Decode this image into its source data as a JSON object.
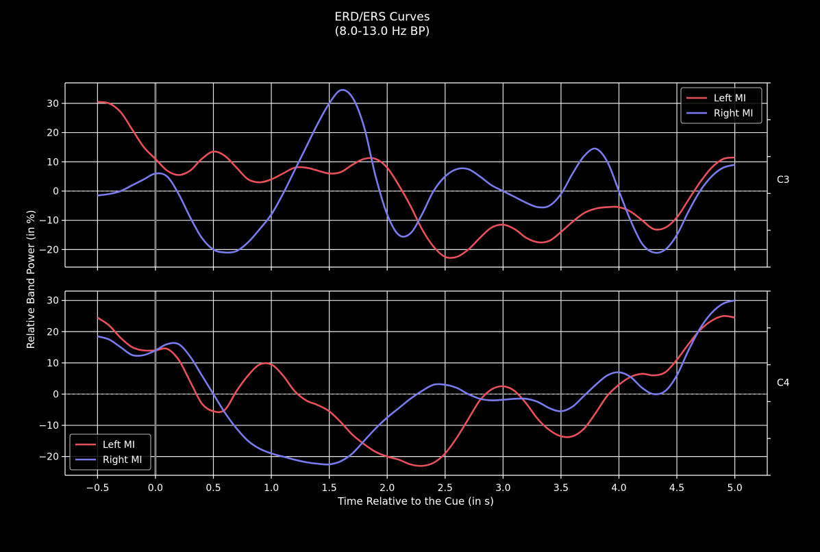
{
  "chart_data": {
    "type": "line",
    "title": "ERD/ERS Curves",
    "subtitle": "(8.0-13.0 Hz BP)",
    "xlabel": "Time Relative to the Cue (in s)",
    "ylabel": "Relative Band Power (in %)",
    "xlim": [
      -0.78,
      5.28
    ],
    "x_ticks": [
      -0.5,
      0.0,
      0.5,
      1.0,
      1.5,
      2.0,
      2.5,
      3.0,
      3.5,
      4.0,
      4.5,
      5.0
    ],
    "x_tick_labels": [
      "−0.5",
      "0.0",
      "0.5",
      "1.0",
      "1.5",
      "2.0",
      "2.5",
      "3.0",
      "3.5",
      "4.0",
      "4.5",
      "5.0"
    ],
    "grid": true,
    "colors": {
      "background": "#000000",
      "left": "#e8505b",
      "right": "#7b7bee",
      "grid": "#e6e6e6",
      "cue": "#808080"
    },
    "legend_labels": [
      "Left MI",
      "Right MI"
    ],
    "panels": [
      {
        "channel": "C3",
        "ylim": [
          -26,
          37
        ],
        "y_ticks": [
          -20,
          -10,
          0,
          10,
          20,
          30
        ],
        "y_tick_labels": [
          "−20",
          "−10",
          "0",
          "10",
          "20",
          "30"
        ],
        "legend_position": "upper-right",
        "series": [
          {
            "name": "Left MI",
            "points": [
              [
                -0.5,
                30.5
              ],
              [
                -0.4,
                30
              ],
              [
                -0.3,
                27
              ],
              [
                -0.2,
                21
              ],
              [
                -0.1,
                15
              ],
              [
                0,
                11
              ],
              [
                0.1,
                7
              ],
              [
                0.2,
                5.5
              ],
              [
                0.3,
                7
              ],
              [
                0.4,
                11
              ],
              [
                0.5,
                13.5
              ],
              [
                0.6,
                12
              ],
              [
                0.7,
                8
              ],
              [
                0.8,
                4
              ],
              [
                0.9,
                3
              ],
              [
                1.0,
                4
              ],
              [
                1.1,
                6
              ],
              [
                1.2,
                8
              ],
              [
                1.3,
                8
              ],
              [
                1.4,
                7
              ],
              [
                1.5,
                6
              ],
              [
                1.6,
                6.5
              ],
              [
                1.7,
                9
              ],
              [
                1.8,
                11
              ],
              [
                1.9,
                11
              ],
              [
                2.0,
                8
              ],
              [
                2.1,
                2
              ],
              [
                2.2,
                -5
              ],
              [
                2.3,
                -13
              ],
              [
                2.4,
                -19
              ],
              [
                2.5,
                -22.5
              ],
              [
                2.6,
                -22.5
              ],
              [
                2.7,
                -20
              ],
              [
                2.8,
                -16
              ],
              [
                2.9,
                -12.5
              ],
              [
                3.0,
                -11.5
              ],
              [
                3.1,
                -13
              ],
              [
                3.2,
                -16
              ],
              [
                3.3,
                -17.5
              ],
              [
                3.4,
                -17
              ],
              [
                3.5,
                -14
              ],
              [
                3.6,
                -10.5
              ],
              [
                3.7,
                -7.5
              ],
              [
                3.8,
                -6
              ],
              [
                3.9,
                -5.5
              ],
              [
                4.0,
                -5.5
              ],
              [
                4.1,
                -7
              ],
              [
                4.2,
                -10
              ],
              [
                4.3,
                -13
              ],
              [
                4.4,
                -12.5
              ],
              [
                4.5,
                -9
              ],
              [
                4.6,
                -3
              ],
              [
                4.7,
                3
              ],
              [
                4.8,
                8
              ],
              [
                4.9,
                11
              ],
              [
                5.0,
                11.5
              ]
            ]
          },
          {
            "name": "Right MI",
            "points": [
              [
                -0.5,
                -1.5
              ],
              [
                -0.4,
                -1
              ],
              [
                -0.3,
                0
              ],
              [
                -0.2,
                2
              ],
              [
                -0.1,
                4
              ],
              [
                0,
                6
              ],
              [
                0.1,
                5
              ],
              [
                0.2,
                -1
              ],
              [
                0.3,
                -9
              ],
              [
                0.4,
                -16
              ],
              [
                0.5,
                -20
              ],
              [
                0.6,
                -21
              ],
              [
                0.7,
                -20.5
              ],
              [
                0.8,
                -17.5
              ],
              [
                0.9,
                -13
              ],
              [
                1.0,
                -8
              ],
              [
                1.1,
                -1
              ],
              [
                1.2,
                7
              ],
              [
                1.3,
                15
              ],
              [
                1.4,
                23
              ],
              [
                1.5,
                30
              ],
              [
                1.6,
                34.5
              ],
              [
                1.7,
                32
              ],
              [
                1.8,
                22
              ],
              [
                1.9,
                5
              ],
              [
                2.0,
                -8
              ],
              [
                2.1,
                -15
              ],
              [
                2.2,
                -14.5
              ],
              [
                2.3,
                -8
              ],
              [
                2.4,
                0
              ],
              [
                2.5,
                5
              ],
              [
                2.6,
                7.5
              ],
              [
                2.7,
                7.5
              ],
              [
                2.8,
                5
              ],
              [
                2.9,
                2
              ],
              [
                3.0,
                0
              ],
              [
                3.1,
                -2
              ],
              [
                3.2,
                -4
              ],
              [
                3.3,
                -5.5
              ],
              [
                3.4,
                -5
              ],
              [
                3.5,
                -1
              ],
              [
                3.6,
                6
              ],
              [
                3.7,
                12
              ],
              [
                3.8,
                14.5
              ],
              [
                3.9,
                10
              ],
              [
                4.0,
                0
              ],
              [
                4.1,
                -10
              ],
              [
                4.2,
                -18
              ],
              [
                4.3,
                -21
              ],
              [
                4.4,
                -20
              ],
              [
                4.5,
                -15
              ],
              [
                4.6,
                -7
              ],
              [
                4.7,
                0
              ],
              [
                4.8,
                5
              ],
              [
                4.9,
                8
              ],
              [
                5.0,
                9
              ]
            ]
          }
        ]
      },
      {
        "channel": "C4",
        "ylim": [
          -26,
          33
        ],
        "y_ticks": [
          -20,
          -10,
          0,
          10,
          20,
          30
        ],
        "y_tick_labels": [
          "−20",
          "−10",
          "0",
          "10",
          "20",
          "30"
        ],
        "legend_position": "lower-left",
        "series": [
          {
            "name": "Left MI",
            "points": [
              [
                -0.5,
                24.5
              ],
              [
                -0.4,
                22
              ],
              [
                -0.3,
                18
              ],
              [
                -0.2,
                15
              ],
              [
                -0.1,
                14
              ],
              [
                0,
                14
              ],
              [
                0.1,
                14.5
              ],
              [
                0.2,
                11
              ],
              [
                0.3,
                4
              ],
              [
                0.4,
                -3
              ],
              [
                0.5,
                -5.5
              ],
              [
                0.6,
                -5
              ],
              [
                0.7,
                1
              ],
              [
                0.8,
                6
              ],
              [
                0.9,
                9.5
              ],
              [
                1.0,
                9.5
              ],
              [
                1.1,
                6
              ],
              [
                1.2,
                1
              ],
              [
                1.3,
                -2
              ],
              [
                1.4,
                -3.5
              ],
              [
                1.5,
                -5.5
              ],
              [
                1.6,
                -9
              ],
              [
                1.7,
                -13
              ],
              [
                1.8,
                -16
              ],
              [
                1.9,
                -18.5
              ],
              [
                2.0,
                -20
              ],
              [
                2.1,
                -21
              ],
              [
                2.2,
                -22.5
              ],
              [
                2.3,
                -23
              ],
              [
                2.4,
                -22
              ],
              [
                2.5,
                -19
              ],
              [
                2.6,
                -14
              ],
              [
                2.7,
                -8
              ],
              [
                2.8,
                -2
              ],
              [
                2.9,
                1.5
              ],
              [
                3.0,
                2.5
              ],
              [
                3.1,
                1
              ],
              [
                3.2,
                -3
              ],
              [
                3.3,
                -8
              ],
              [
                3.4,
                -11.5
              ],
              [
                3.5,
                -13.5
              ],
              [
                3.6,
                -13.5
              ],
              [
                3.7,
                -11
              ],
              [
                3.8,
                -6
              ],
              [
                3.9,
                -0.5
              ],
              [
                4.0,
                3
              ],
              [
                4.1,
                5.5
              ],
              [
                4.2,
                6.5
              ],
              [
                4.3,
                6
              ],
              [
                4.4,
                7
              ],
              [
                4.5,
                11
              ],
              [
                4.6,
                16
              ],
              [
                4.7,
                20.5
              ],
              [
                4.8,
                23.5
              ],
              [
                4.9,
                25
              ],
              [
                5.0,
                24.5
              ]
            ]
          },
          {
            "name": "Right MI",
            "points": [
              [
                -0.5,
                18.5
              ],
              [
                -0.4,
                17.5
              ],
              [
                -0.3,
                15
              ],
              [
                -0.2,
                12.5
              ],
              [
                -0.1,
                12.5
              ],
              [
                0,
                14
              ],
              [
                0.1,
                16
              ],
              [
                0.2,
                16
              ],
              [
                0.3,
                12
              ],
              [
                0.4,
                6
              ],
              [
                0.5,
                0
              ],
              [
                0.6,
                -6
              ],
              [
                0.7,
                -11
              ],
              [
                0.8,
                -15
              ],
              [
                0.9,
                -17.5
              ],
              [
                1.0,
                -19
              ],
              [
                1.1,
                -20
              ],
              [
                1.2,
                -21
              ],
              [
                1.3,
                -21.8
              ],
              [
                1.4,
                -22.3
              ],
              [
                1.5,
                -22.5
              ],
              [
                1.6,
                -21.5
              ],
              [
                1.7,
                -19
              ],
              [
                1.8,
                -15
              ],
              [
                1.9,
                -11
              ],
              [
                2.0,
                -7.5
              ],
              [
                2.1,
                -4.5
              ],
              [
                2.2,
                -1.5
              ],
              [
                2.3,
                1
              ],
              [
                2.4,
                3
              ],
              [
                2.5,
                3
              ],
              [
                2.6,
                2
              ],
              [
                2.7,
                0
              ],
              [
                2.8,
                -1.5
              ],
              [
                2.9,
                -2
              ],
              [
                3.0,
                -1.8
              ],
              [
                3.1,
                -1.5
              ],
              [
                3.2,
                -1.5
              ],
              [
                3.3,
                -2.5
              ],
              [
                3.4,
                -4.5
              ],
              [
                3.5,
                -5.5
              ],
              [
                3.6,
                -4
              ],
              [
                3.7,
                -0.5
              ],
              [
                3.8,
                3
              ],
              [
                3.9,
                6
              ],
              [
                4.0,
                7
              ],
              [
                4.1,
                5.5
              ],
              [
                4.2,
                2
              ],
              [
                4.3,
                0
              ],
              [
                4.4,
                1
              ],
              [
                4.5,
                6
              ],
              [
                4.6,
                14
              ],
              [
                4.7,
                21
              ],
              [
                4.8,
                26
              ],
              [
                4.9,
                29
              ],
              [
                5.0,
                30
              ]
            ]
          }
        ]
      }
    ]
  }
}
